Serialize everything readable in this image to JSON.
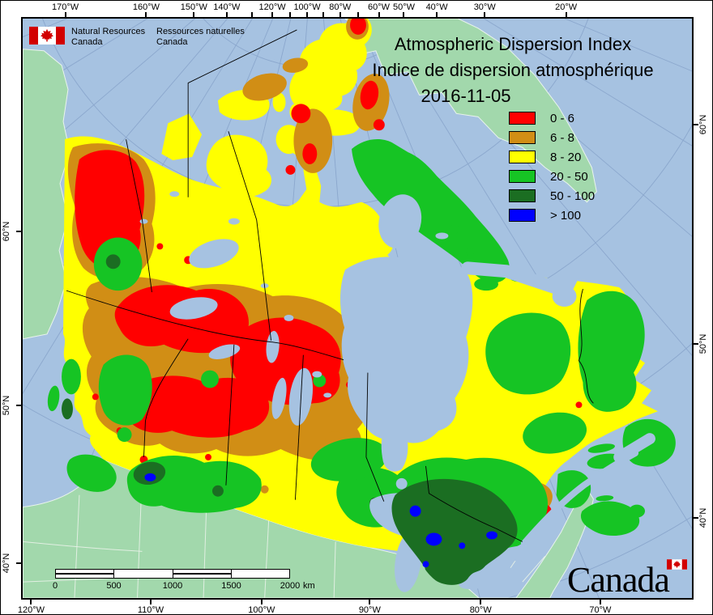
{
  "logo": {
    "en_line1": "Natural Resources",
    "en_line2": "Canada",
    "fr_line1": "Ressources naturelles",
    "fr_line2": "Canada"
  },
  "title": {
    "line1": "Atmospheric Dispersion Index",
    "line2": "Indice de dispersion atmosphérique",
    "date": "2016-11-05"
  },
  "legend": {
    "items": [
      {
        "label": "0 - 6",
        "color_key": "adi_0_6"
      },
      {
        "label": "6 - 8",
        "color_key": "adi_6_8"
      },
      {
        "label": "8 - 20",
        "color_key": "adi_8_20"
      },
      {
        "label": "20 - 50",
        "color_key": "adi_20_50"
      },
      {
        "label": "50 - 100",
        "color_key": "adi_50_100"
      },
      {
        "label": "> 100",
        "color_key": "adi_gt_100"
      }
    ]
  },
  "axes": {
    "top_labels": [
      "170°W",
      "160°W",
      "150°W",
      "140°W",
      "120°W",
      "100°W",
      "80°W",
      "60°W",
      "50°W",
      "40°W",
      "30°W",
      "20°W"
    ],
    "top_tick_lons": [
      170,
      160,
      150,
      140,
      130,
      120,
      110,
      100,
      90,
      80,
      70,
      60,
      50,
      40,
      30,
      20
    ],
    "bottom_labels": [
      "120°W",
      "110°W",
      "100°W",
      "90°W",
      "80°W",
      "70°W"
    ],
    "left_labels": [
      "60°N",
      "50°N",
      "40°N"
    ],
    "right_labels": [
      "60°N",
      "50°N",
      "40°N"
    ]
  },
  "scalebar": {
    "ticks": [
      "0",
      "500",
      "1000",
      "1500",
      "2000"
    ],
    "unit": "km"
  },
  "wordmark": "Canada",
  "colors": {
    "ocean": "#A6C2E1",
    "foreign_land": "#A2D8AC",
    "coast_line": "#E9F4EC",
    "graticule": "#8BA7CD",
    "adi_0_6": "#FF0000",
    "adi_6_8": "#D18E15",
    "adi_8_20": "#FFFF00",
    "adi_20_50": "#16C424",
    "adi_50_100": "#1B6E22",
    "adi_gt_100": "#0000FF",
    "flag_red": "#D20000",
    "border": "#000000",
    "state_line": "#E8F2E8"
  }
}
